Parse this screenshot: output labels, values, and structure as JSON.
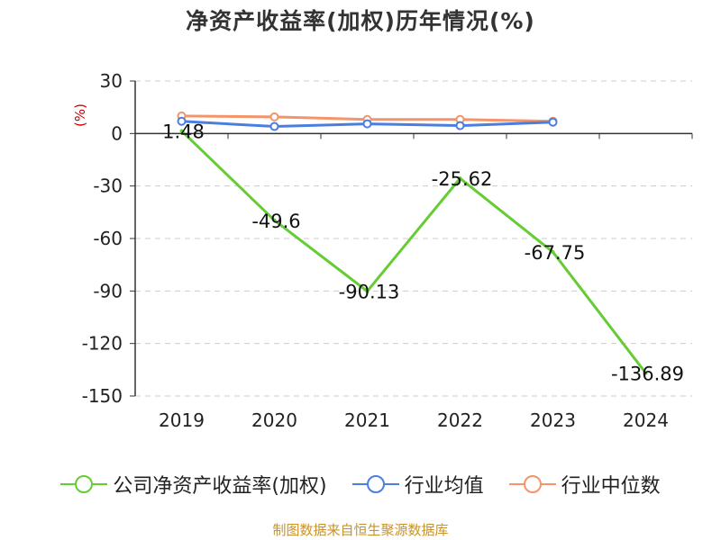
{
  "title": "净资产收益率(加权)历年情况(%)",
  "unit_label": "(%)",
  "footer": "制图数据来自恒生聚源数据库",
  "colors": {
    "company": "#66cc33",
    "industry_avg": "#4a7fe0",
    "industry_median": "#f4946a",
    "unit": "#cc0000",
    "footer": "#c8922a",
    "grid": "#cccccc"
  },
  "chart_data": {
    "type": "line",
    "title": "净资产收益率(加权)历年情况(%)",
    "xlabel": "",
    "ylabel": "(%)",
    "categories": [
      "2019",
      "2020",
      "2021",
      "2022",
      "2023",
      "2024"
    ],
    "ylim": [
      -150,
      30
    ],
    "yticks": [
      30,
      0,
      -30,
      -60,
      -90,
      -120,
      -150
    ],
    "grid": true,
    "legend_position": "bottom",
    "series": [
      {
        "name": "公司净资产收益率(加权)",
        "values": [
          1.48,
          -49.6,
          -90.13,
          -25.62,
          -67.75,
          -136.89
        ],
        "labels": [
          "1.48",
          "-49.6",
          "-90.13",
          "-25.62",
          "-67.75",
          "-136.89"
        ]
      },
      {
        "name": "行业均值",
        "values": [
          7,
          4,
          5.5,
          4.5,
          6.5,
          null
        ]
      },
      {
        "name": "行业中位数",
        "values": [
          10,
          9.5,
          8,
          8,
          7,
          null
        ]
      }
    ]
  }
}
